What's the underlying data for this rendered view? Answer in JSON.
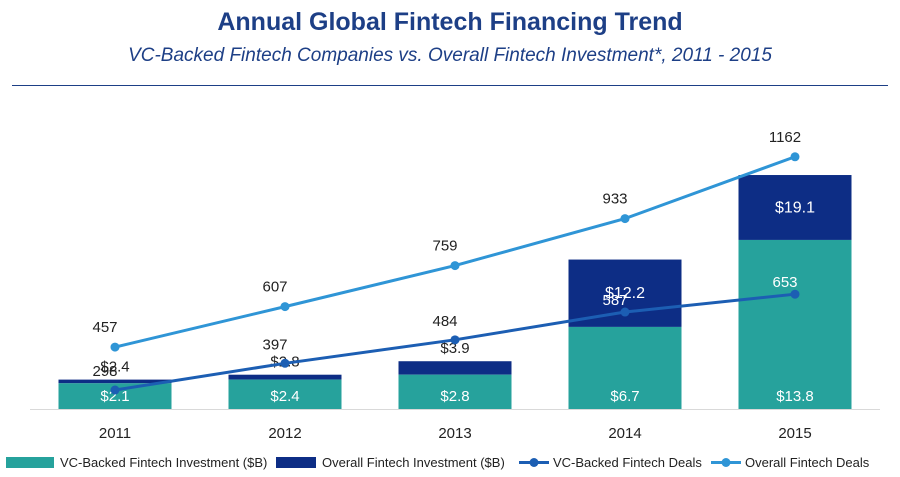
{
  "title": "Annual Global Fintech Financing Trend",
  "subtitle": "VC-Backed Fintech Companies vs. Overall Fintech Investment*, 2011 - 2015",
  "colors": {
    "vc_investment": "#26a29c",
    "overall_investment": "#0d2d85",
    "vc_deals": "#1c5eb3",
    "overall_deals": "#2f95d6",
    "title": "#1d3f86"
  },
  "chart_data": {
    "type": "bar",
    "categories": [
      "2011",
      "2012",
      "2013",
      "2014",
      "2015"
    ],
    "series": [
      {
        "name": "VC-Backed Fintech Investment  ($B)",
        "type": "bar",
        "values": [
          2.1,
          2.4,
          2.8,
          6.7,
          13.8
        ],
        "labels": [
          "$2.1",
          "$2.4",
          "$2.8",
          "$6.7",
          "$13.8"
        ]
      },
      {
        "name": "Overall Fintech Investment ($B)",
        "type": "bar",
        "values": [
          2.4,
          2.8,
          3.9,
          12.2,
          19.1
        ],
        "labels": [
          "$2.4",
          "$2.8",
          "$3.9",
          "$12.2",
          "$19.1"
        ]
      },
      {
        "name": "VC-Backed Fintech Deals",
        "type": "line",
        "values": [
          298,
          397,
          484,
          587,
          653
        ],
        "labels": [
          "298",
          "397",
          "484",
          "587",
          "653"
        ]
      },
      {
        "name": "Overall Fintech Deals",
        "type": "line",
        "values": [
          457,
          607,
          759,
          933,
          1162
        ],
        "labels": [
          "457",
          "607",
          "759",
          "933",
          "1162"
        ]
      }
    ],
    "legend_position": "bottom",
    "grid": false
  }
}
